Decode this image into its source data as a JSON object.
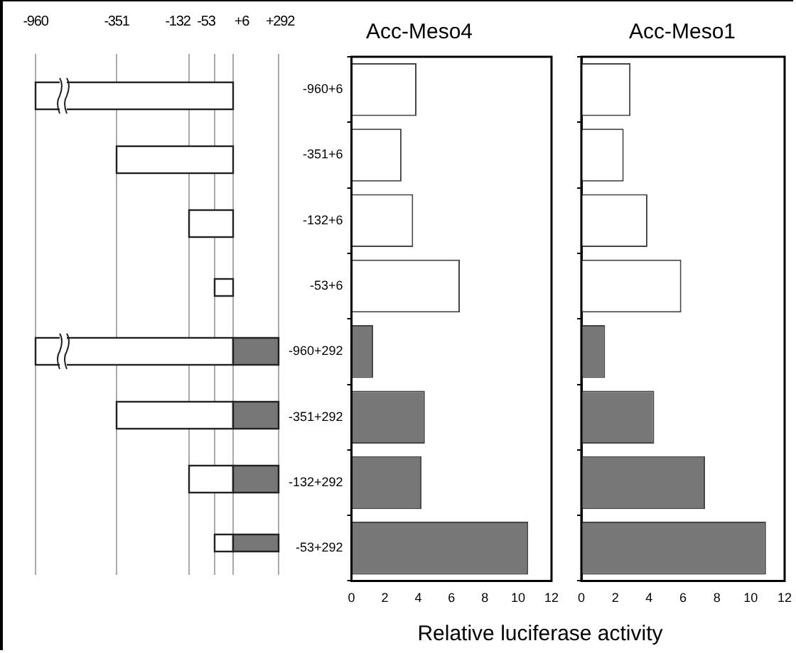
{
  "chart_data": [
    {
      "type": "other",
      "annotations": [
        "-960",
        "-351",
        "-132",
        "-53",
        "+6",
        "+292"
      ]
    },
    {
      "type": "bar",
      "orientation": "horizontal",
      "title": "Acc-Meso4",
      "xlabel": "Relative luciferase activity",
      "categories": [
        "-960+6",
        "-351+6",
        "-132+6",
        "-53+6",
        "-960+292",
        "-351+292",
        "-132+292",
        "-53+292"
      ],
      "values": [
        3.9,
        3,
        3.7,
        6.5,
        1.3,
        4.4,
        4.2,
        10.6
      ],
      "colors": [
        "#ffffff",
        "#ffffff",
        "#ffffff",
        "#ffffff",
        "#777777",
        "#777777",
        "#777777",
        "#777777"
      ],
      "xlim": [
        0,
        12
      ],
      "xticks": [
        0,
        2,
        4,
        6,
        8,
        10,
        12
      ],
      "grid": false,
      "legend": false
    },
    {
      "type": "bar",
      "orientation": "horizontal",
      "title": "Acc-Meso1",
      "categories": [
        null,
        null,
        null,
        null,
        null,
        null,
        null,
        null
      ],
      "values": [
        2.9,
        2.5,
        3.9,
        5.9,
        1.4,
        4.3,
        7.3,
        10.9
      ],
      "colors": [
        "#ffffff",
        "#ffffff",
        "#ffffff",
        "#ffffff",
        "#777777",
        "#777777",
        "#777777",
        "#777777"
      ],
      "xlim": [
        0,
        12
      ],
      "xticks": [
        0,
        2,
        4,
        6,
        8,
        10,
        12
      ],
      "grid": false,
      "legend": false,
      "tick_labels": "x"
    }
  ]
}
